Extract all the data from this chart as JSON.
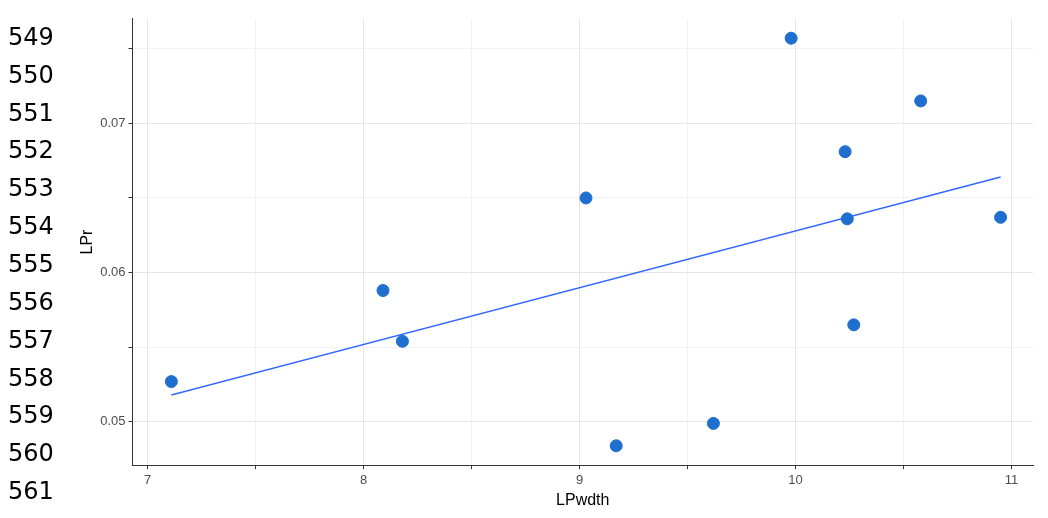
{
  "chart_data": {
    "type": "scatter",
    "xlabel": "LPwdth",
    "ylabel": "LPr",
    "xlim": [
      6.93,
      11.1
    ],
    "ylim": [
      0.0471,
      0.077
    ],
    "xticks": [
      7,
      {
        "value": 7.5,
        "label": null
      },
      8,
      {
        "value": 8.5,
        "label": null
      },
      9,
      {
        "value": 9.5,
        "label": null
      },
      10,
      {
        "value": 10.5,
        "label": null
      },
      11
    ],
    "yticks": [
      {
        "value": 0.05,
        "label": "0.05"
      },
      {
        "value": 0.055,
        "label": null
      },
      {
        "value": 0.06,
        "label": "0.06"
      },
      {
        "value": 0.065,
        "label": null
      },
      {
        "value": 0.07,
        "label": "0.07"
      },
      {
        "value": 0.075,
        "label": null
      }
    ],
    "grid": true,
    "series": [
      {
        "type": "scatter",
        "marker": "circle",
        "color": "#1f6fd0",
        "x": [
          7.11,
          8.09,
          8.18,
          9.03,
          9.17,
          9.62,
          9.98,
          10.23,
          10.24,
          10.27,
          10.58,
          10.95
        ],
        "values": [
          0.0527,
          0.0588,
          0.0554,
          0.065,
          0.0484,
          0.0499,
          0.0757,
          0.0681,
          0.0636,
          0.0565,
          0.0715,
          0.0637
        ]
      },
      {
        "type": "line",
        "marker": "none",
        "color": "#3366ff",
        "x": [
          7.11,
          10.95
        ],
        "values": [
          0.0518,
          0.0664
        ]
      }
    ],
    "annotations": [
      "549",
      "550",
      "551",
      "552",
      "553",
      "554",
      "555",
      "556",
      "557",
      "558",
      "559",
      "560",
      "561"
    ]
  }
}
